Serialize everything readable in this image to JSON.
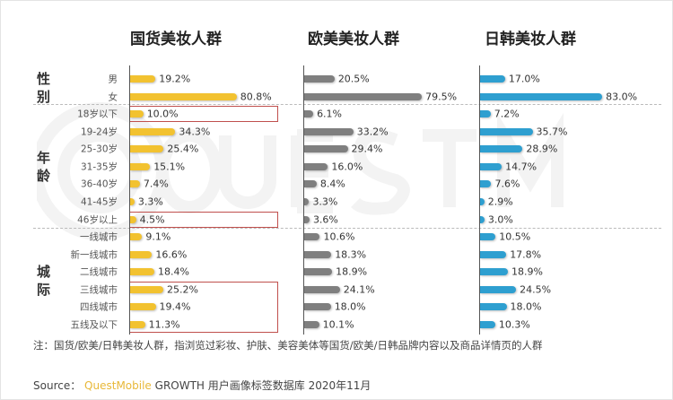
{
  "chart_data": {
    "type": "bar",
    "orientation": "horizontal",
    "panels": [
      {
        "title": "国货美妆人群",
        "color": "#f2c230",
        "values": [
          19.2,
          80.8,
          10.0,
          34.3,
          25.4,
          15.1,
          7.4,
          3.3,
          4.5,
          9.1,
          16.6,
          18.4,
          25.2,
          19.4,
          11.3
        ]
      },
      {
        "title": "欧美美妆人群",
        "color": "#7f7f7f",
        "values": [
          20.5,
          79.5,
          6.1,
          33.2,
          29.4,
          16.0,
          8.4,
          3.3,
          3.6,
          10.6,
          18.3,
          18.9,
          24.1,
          18.0,
          10.1
        ]
      },
      {
        "title": "日韩美妆人群",
        "color": "#2e9fd0",
        "values": [
          17.0,
          83.0,
          7.2,
          35.7,
          28.9,
          14.7,
          7.6,
          2.9,
          3.0,
          10.5,
          17.8,
          18.9,
          24.5,
          18.0,
          10.3
        ]
      }
    ],
    "categories": [
      "男",
      "女",
      "18岁以下",
      "19-24岁",
      "25-30岁",
      "31-35岁",
      "36-40岁",
      "41-45岁",
      "46岁以上",
      "一线城市",
      "新一线城市",
      "二线城市",
      "三线城市",
      "四线城市",
      "五线及以下"
    ],
    "groups": [
      {
        "label": "性别",
        "rows": [
          0,
          1
        ]
      },
      {
        "label": "年龄",
        "rows": [
          2,
          8
        ]
      },
      {
        "label": "城际",
        "rows": [
          9,
          14
        ]
      }
    ],
    "highlighted_rows": [
      [
        2,
        2
      ],
      [
        8,
        8
      ],
      [
        12,
        14
      ]
    ],
    "highlight_color": "#c0504d",
    "value_suffix": "%"
  },
  "watermark": "QUESTMOBILE",
  "note": "注：国货/欧美/日韩美妆人群，指浏览过彩妆、护肤、美容美体等国货/欧美/日韩品牌内容以及商品详情页的人群",
  "source": {
    "prefix": "Source：",
    "brand": "QuestMobile",
    "text": "GROWTH 用户画像标签数据库 2020年11月"
  }
}
